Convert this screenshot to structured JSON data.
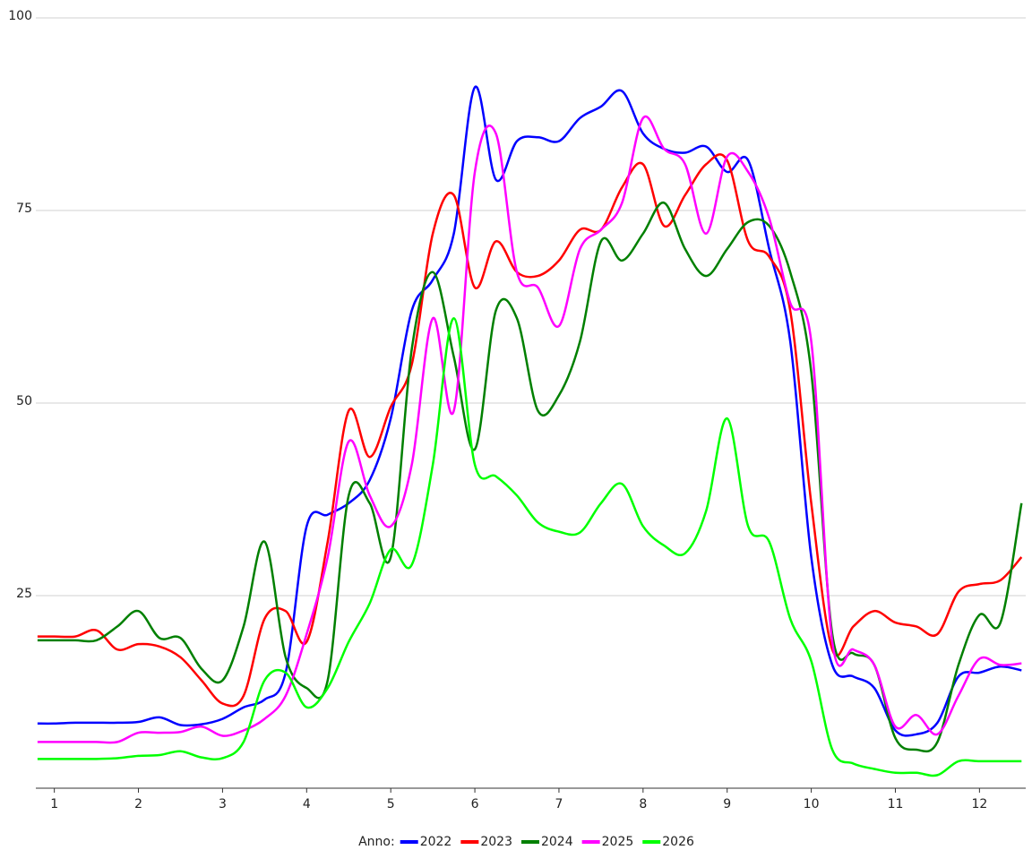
{
  "chart_data": {
    "type": "line",
    "x": [
      0.8,
      1,
      1.25,
      1.5,
      1.75,
      2,
      2.25,
      2.5,
      2.75,
      3,
      3.25,
      3.5,
      3.75,
      4,
      4.25,
      4.5,
      4.75,
      5,
      5.25,
      5.5,
      5.75,
      6,
      6.25,
      6.5,
      6.75,
      7,
      7.25,
      7.5,
      7.75,
      8,
      8.25,
      8.5,
      8.75,
      9,
      9.25,
      9.5,
      9.75,
      10,
      10.25,
      10.5,
      10.75,
      11,
      11.25,
      11.5,
      11.75,
      12,
      12.25,
      12.5
    ],
    "legend_title": "Anno:",
    "series": [
      {
        "name": "2022",
        "color": "#0000ff",
        "values": [
          8.4,
          8.4,
          8.5,
          8.5,
          8.5,
          8.6,
          9.2,
          8.2,
          8.3,
          9,
          10.5,
          11.5,
          15,
          34,
          35.5,
          37,
          40,
          48,
          62,
          66,
          72,
          91,
          79,
          84,
          84.5,
          84,
          87,
          88.5,
          90.5,
          85,
          83,
          82.5,
          83.3,
          80,
          81.5,
          70,
          58,
          30,
          16,
          14.5,
          13,
          7.5,
          7,
          8.5,
          14.5,
          15,
          15.8,
          15.3
        ]
      },
      {
        "name": "2023",
        "color": "#ff0000",
        "values": [
          19.7,
          19.7,
          19.7,
          20.5,
          18,
          18.7,
          18.4,
          17,
          14,
          11,
          12,
          22,
          23,
          19,
          32,
          49,
          43,
          49.5,
          55,
          72,
          77,
          65,
          71,
          67,
          66.5,
          68.5,
          72.5,
          72.5,
          78,
          81,
          73,
          77,
          81,
          81.5,
          71,
          69,
          62,
          37,
          18,
          21,
          23,
          21.5,
          21,
          20,
          25.5,
          26.5,
          27,
          30
        ]
      },
      {
        "name": "2024",
        "color": "#008000",
        "values": [
          19.2,
          19.2,
          19.2,
          19.2,
          21,
          23,
          19.5,
          19.5,
          15.5,
          14,
          21,
          32,
          17,
          13,
          14,
          38,
          37,
          30,
          57,
          67,
          56,
          44,
          62,
          61,
          49,
          51,
          58,
          71,
          68.5,
          72,
          76,
          70,
          66.5,
          70,
          73.5,
          73,
          67,
          54,
          20,
          17.5,
          16,
          6.5,
          5,
          6,
          16,
          22.5,
          21.5,
          37
        ]
      },
      {
        "name": "2025",
        "color": "#ff00ff",
        "values": [
          6,
          6,
          6,
          6,
          6,
          7.2,
          7.2,
          7.3,
          8,
          6.8,
          7.5,
          9,
          12,
          20,
          30,
          45,
          38,
          34,
          42,
          61,
          49,
          80,
          85,
          67,
          65,
          60,
          70,
          72.5,
          76,
          87,
          83,
          81,
          72,
          82,
          80,
          74,
          63,
          58,
          19,
          18,
          16,
          8,
          9.5,
          7,
          12,
          16.8,
          16,
          16.2
        ]
      },
      {
        "name": "2026",
        "color": "#00ff00",
        "values": [
          3.8,
          3.8,
          3.8,
          3.8,
          3.9,
          4.2,
          4.3,
          4.8,
          4,
          3.9,
          6,
          14,
          15,
          10.5,
          13,
          19,
          24,
          31,
          29,
          42,
          61,
          42,
          40.5,
          38,
          34.5,
          33.3,
          33.2,
          37,
          39.5,
          34,
          31.5,
          30.5,
          36,
          48,
          34,
          32,
          22,
          16.5,
          5,
          3.2,
          2.5,
          2,
          2,
          1.7,
          3.5,
          3.5,
          3.5,
          3.5
        ]
      }
    ],
    "xlim": [
      0.78,
      12.55
    ],
    "xticks": [
      1,
      2,
      3,
      4,
      5,
      6,
      7,
      8,
      9,
      10,
      11,
      12
    ],
    "ylim": [
      0,
      100
    ],
    "yticks": [
      25,
      50,
      75,
      100
    ],
    "grid": true
  }
}
